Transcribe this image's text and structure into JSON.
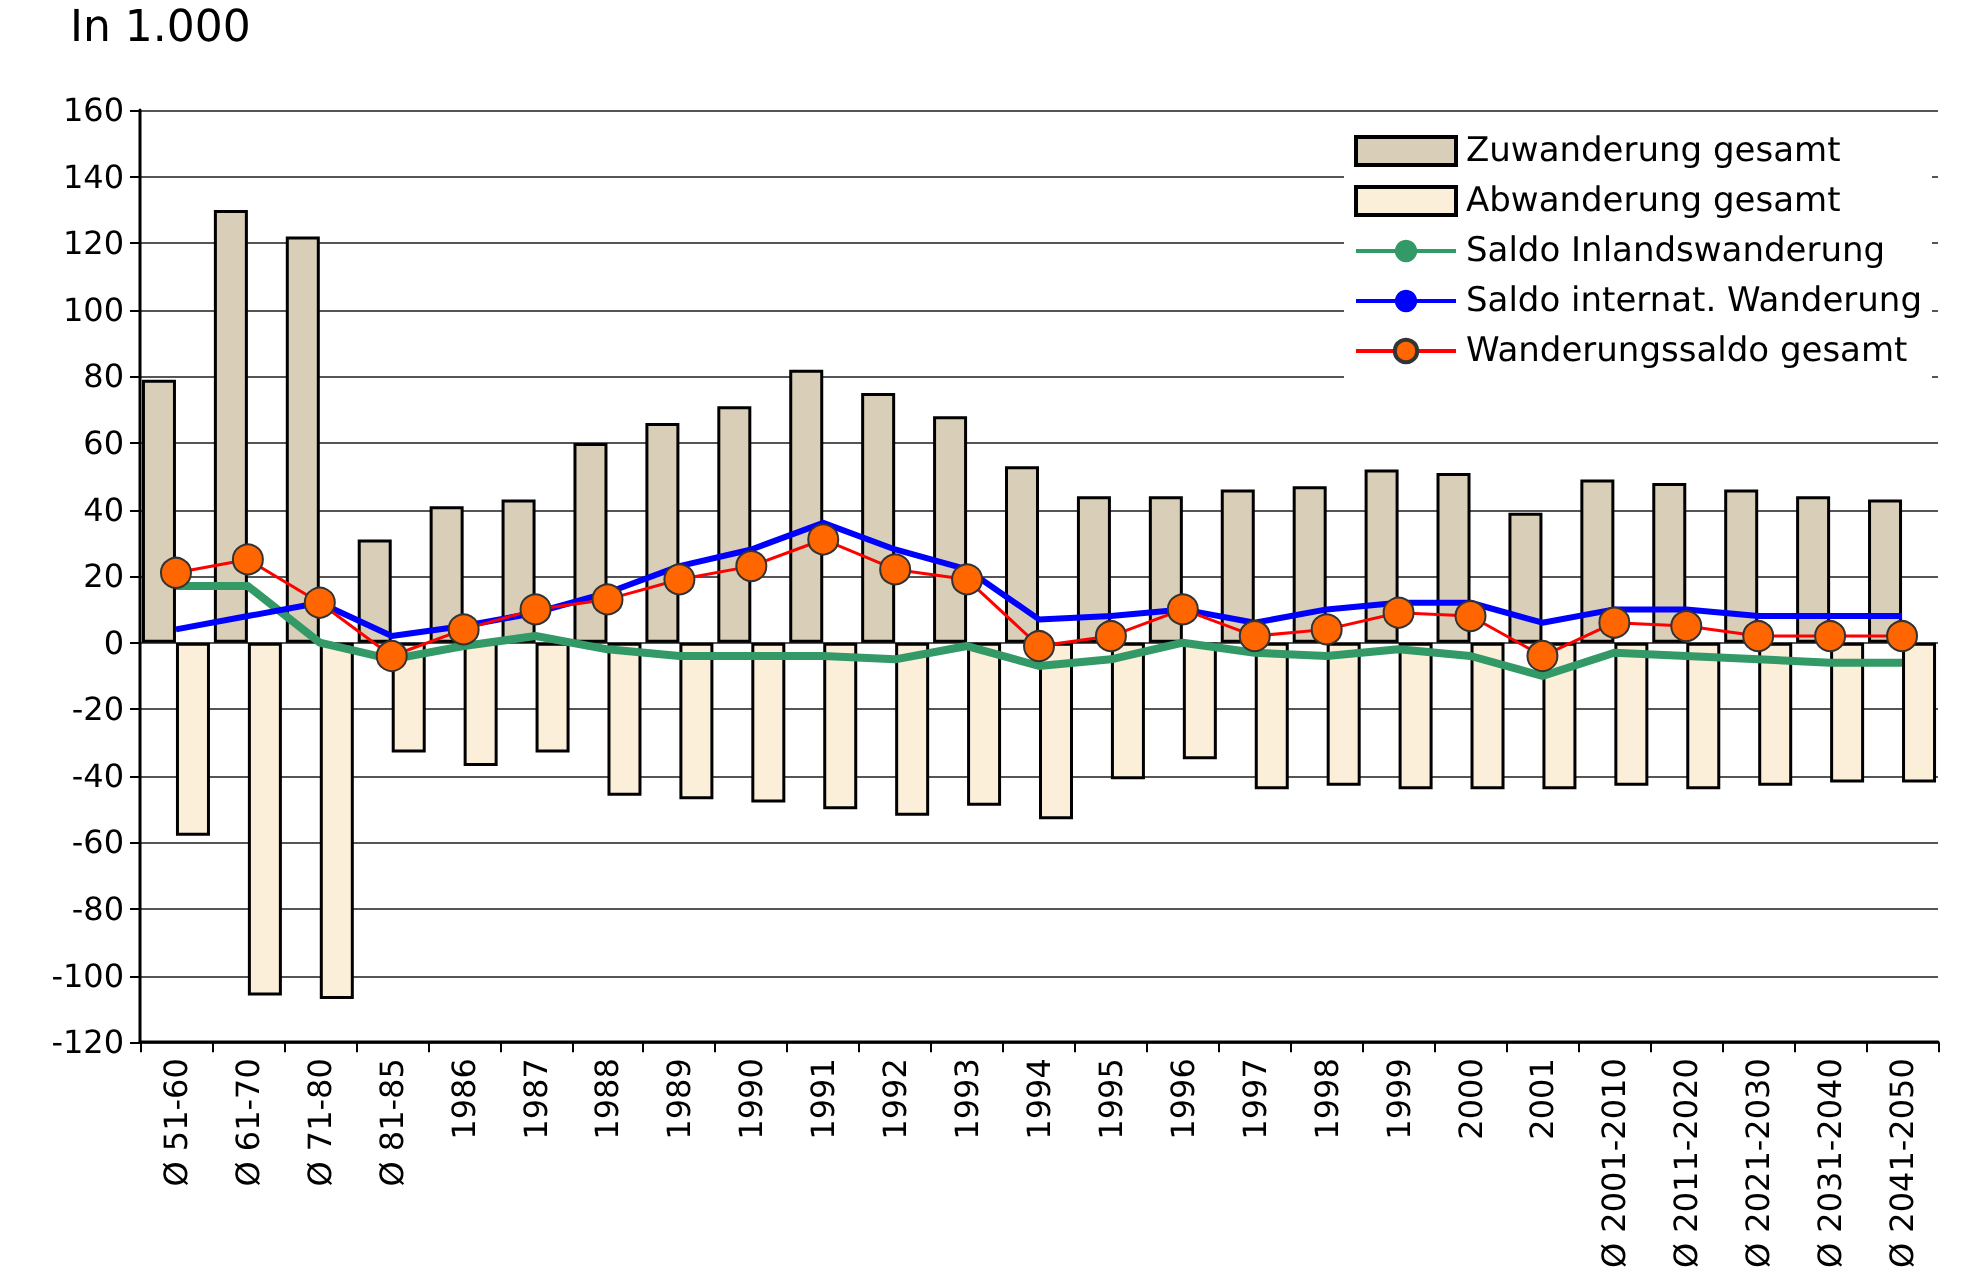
{
  "chart_data": {
    "type": "bar",
    "ylabel": "In 1.000",
    "categories": [
      "Ø 51-60",
      "Ø 61-70",
      "Ø 71-80",
      "Ø 81-85",
      "1986",
      "1987",
      "1988",
      "1989",
      "1990",
      "1991",
      "1992",
      "1993",
      "1994",
      "1995",
      "1996",
      "1997",
      "1998",
      "1999",
      "2000",
      "2001",
      "Ø 2001-2010",
      "Ø 2011-2020",
      "Ø 2021-2030",
      "Ø 2031-2040",
      "Ø 2041-2050"
    ],
    "series": [
      {
        "name": "Zuwanderung gesamt",
        "type": "bar",
        "color": "#d9ceb8",
        "values": [
          79,
          130,
          122,
          31,
          41,
          43,
          60,
          66,
          71,
          82,
          75,
          68,
          53,
          44,
          44,
          46,
          47,
          52,
          51,
          39,
          49,
          48,
          46,
          44,
          43
        ]
      },
      {
        "name": "Abwanderung gesamt",
        "type": "bar",
        "color": "#fbefd9",
        "values": [
          -58,
          -106,
          -107,
          -33,
          -37,
          -33,
          -46,
          -47,
          -48,
          -50,
          -52,
          -49,
          -53,
          -41,
          -35,
          -44,
          -43,
          -44,
          -44,
          -44,
          -43,
          -44,
          -43,
          -42,
          -42
        ]
      },
      {
        "name": "Saldo Inlandswanderung",
        "type": "line",
        "color": "#339966",
        "marker": "none",
        "values": [
          17,
          17,
          0,
          -5,
          -1,
          2,
          -2,
          -4,
          -4,
          -4,
          -5,
          -1,
          -7,
          -5,
          0,
          -3,
          -4,
          -2,
          -4,
          -10,
          -3,
          -4,
          -5,
          -6,
          -6
        ]
      },
      {
        "name": "Saldo internat. Wanderung",
        "type": "line",
        "color": "#0000ff",
        "marker": "none",
        "values": [
          4,
          8,
          12,
          2,
          5,
          9,
          15,
          23,
          28,
          36,
          28,
          22,
          7,
          8,
          10,
          6,
          10,
          12,
          12,
          6,
          10,
          10,
          8,
          8,
          8
        ]
      },
      {
        "name": "Wanderungssaldo gesamt",
        "type": "line",
        "color": "#ff0000",
        "marker": "circle",
        "values": [
          21,
          25,
          12,
          -4,
          4,
          10,
          13,
          19,
          23,
          31,
          22,
          19,
          -1,
          2,
          10,
          2,
          4,
          9,
          8,
          -4,
          6,
          5,
          2,
          2,
          2
        ]
      }
    ],
    "ylim": [
      -120,
      160
    ],
    "yticks": [
      -120,
      -100,
      -80,
      -60,
      -40,
      -20,
      0,
      20,
      40,
      60,
      80,
      100,
      120,
      140,
      160
    ],
    "grid": "y",
    "legend": "top right"
  }
}
